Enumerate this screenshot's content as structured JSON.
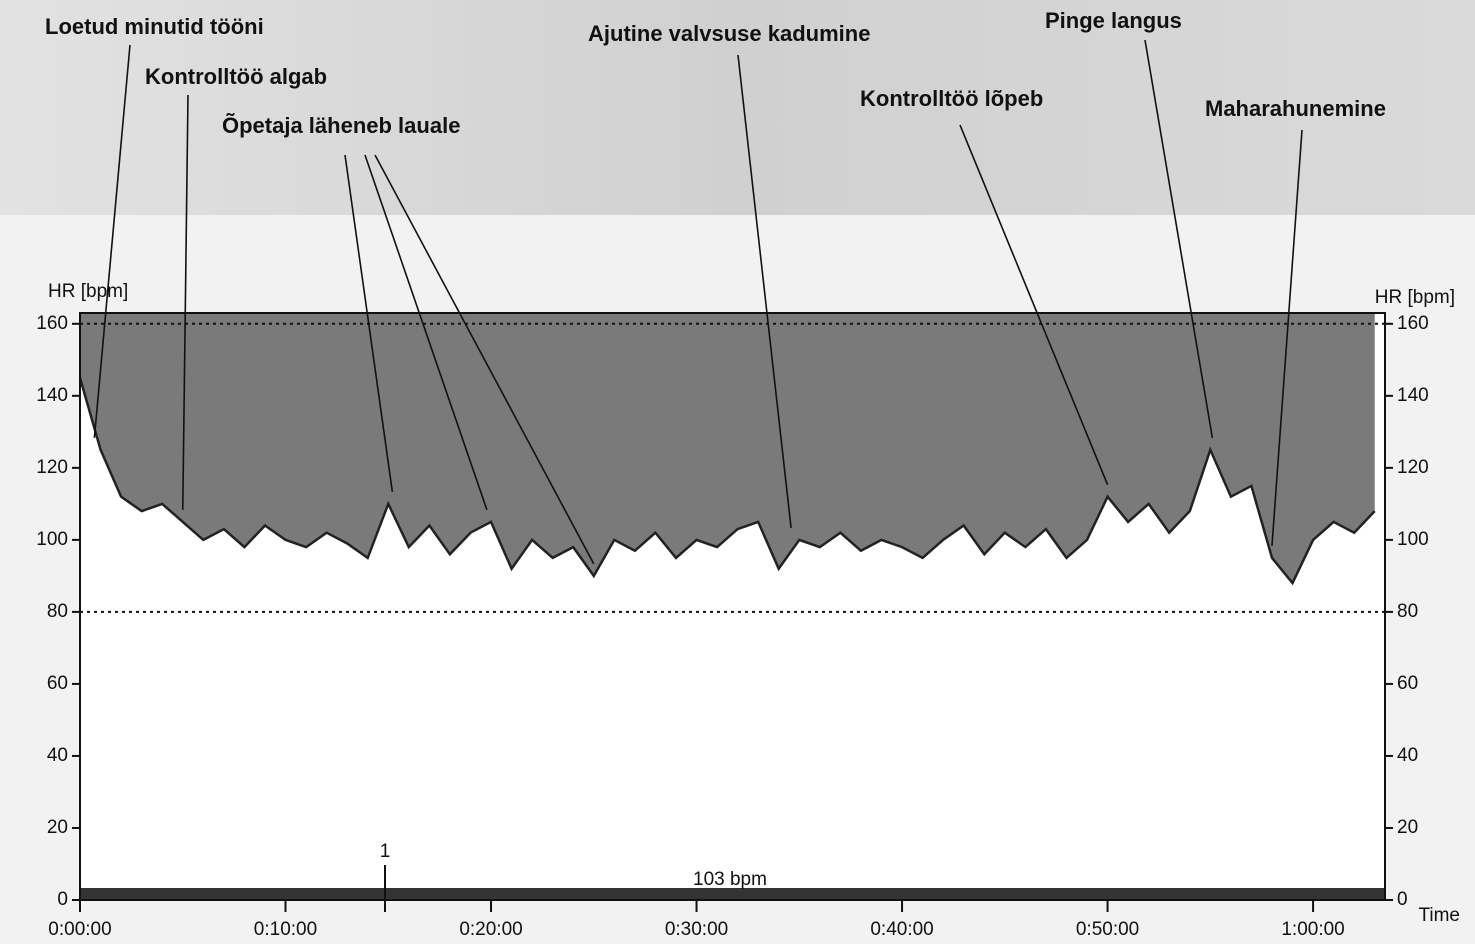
{
  "chart_data": {
    "type": "line",
    "y_label": "HR [bpm]",
    "y2_label": "HR [bpm]",
    "x_label": "Time",
    "x": [
      0,
      1,
      2,
      3,
      4,
      5,
      6,
      7,
      8,
      9,
      10,
      11,
      12,
      13,
      14,
      15,
      16,
      17,
      18,
      19,
      20,
      21,
      22,
      23,
      24,
      25,
      26,
      27,
      28,
      29,
      30,
      31,
      32,
      33,
      34,
      35,
      36,
      37,
      38,
      39,
      40,
      41,
      42,
      43,
      44,
      45,
      46,
      47,
      48,
      49,
      50,
      51,
      52,
      53,
      54,
      55,
      56,
      57,
      58,
      59,
      60,
      61,
      62,
      63
    ],
    "series": [
      {
        "name": "HR",
        "color": "#222222",
        "values": [
          145,
          125,
          112,
          108,
          110,
          105,
          100,
          103,
          98,
          104,
          100,
          98,
          102,
          99,
          95,
          110,
          98,
          104,
          96,
          102,
          105,
          92,
          100,
          95,
          98,
          90,
          100,
          97,
          102,
          95,
          100,
          98,
          103,
          105,
          92,
          100,
          98,
          102,
          97,
          100,
          98,
          95,
          100,
          104,
          96,
          102,
          98,
          103,
          95,
          100,
          112,
          105,
          110,
          102,
          108,
          125,
          112,
          115,
          95,
          88,
          100,
          105,
          102,
          108
        ]
      }
    ],
    "xlim": [
      0,
      63.5
    ],
    "ylim": [
      0,
      163
    ],
    "y2lim": [
      0,
      163
    ],
    "xticks": [
      {
        "value": 0,
        "label": "0:00:00"
      },
      {
        "value": 10,
        "label": "0:10:00"
      },
      {
        "value": 20,
        "label": "0:20:00"
      },
      {
        "value": 30,
        "label": "0:30:00"
      },
      {
        "value": 40,
        "label": "0:40:00"
      },
      {
        "value": 50,
        "label": "0:50:00"
      },
      {
        "value": 60,
        "label": "1:00:00"
      }
    ],
    "yticks": [
      0,
      20,
      40,
      60,
      80,
      100,
      120,
      140,
      160
    ],
    "y2ticks": [
      0,
      20,
      40,
      60,
      80,
      100,
      120,
      140,
      160
    ],
    "limit_lines": [
      80,
      160
    ],
    "annotations": [
      {
        "text": "Loetud minutid tööni",
        "x": [
          0.7
        ]
      },
      {
        "text": "Kontrolltöö algab",
        "x": [
          5
        ]
      },
      {
        "text": "Õpetaja läheneb lauale",
        "x": [
          15.2,
          19.8,
          25
        ]
      },
      {
        "text": "Ajutine valvsuse kadumine",
        "x": [
          34.6
        ]
      },
      {
        "text": "Kontrolltöö lõpeb",
        "x": [
          50
        ]
      },
      {
        "text": "Pinge langus",
        "x": [
          55.1
        ]
      },
      {
        "text": "Maharahunemine",
        "x": [
          58
        ]
      }
    ],
    "marker_label": "1",
    "mean_label": "103 bpm"
  }
}
